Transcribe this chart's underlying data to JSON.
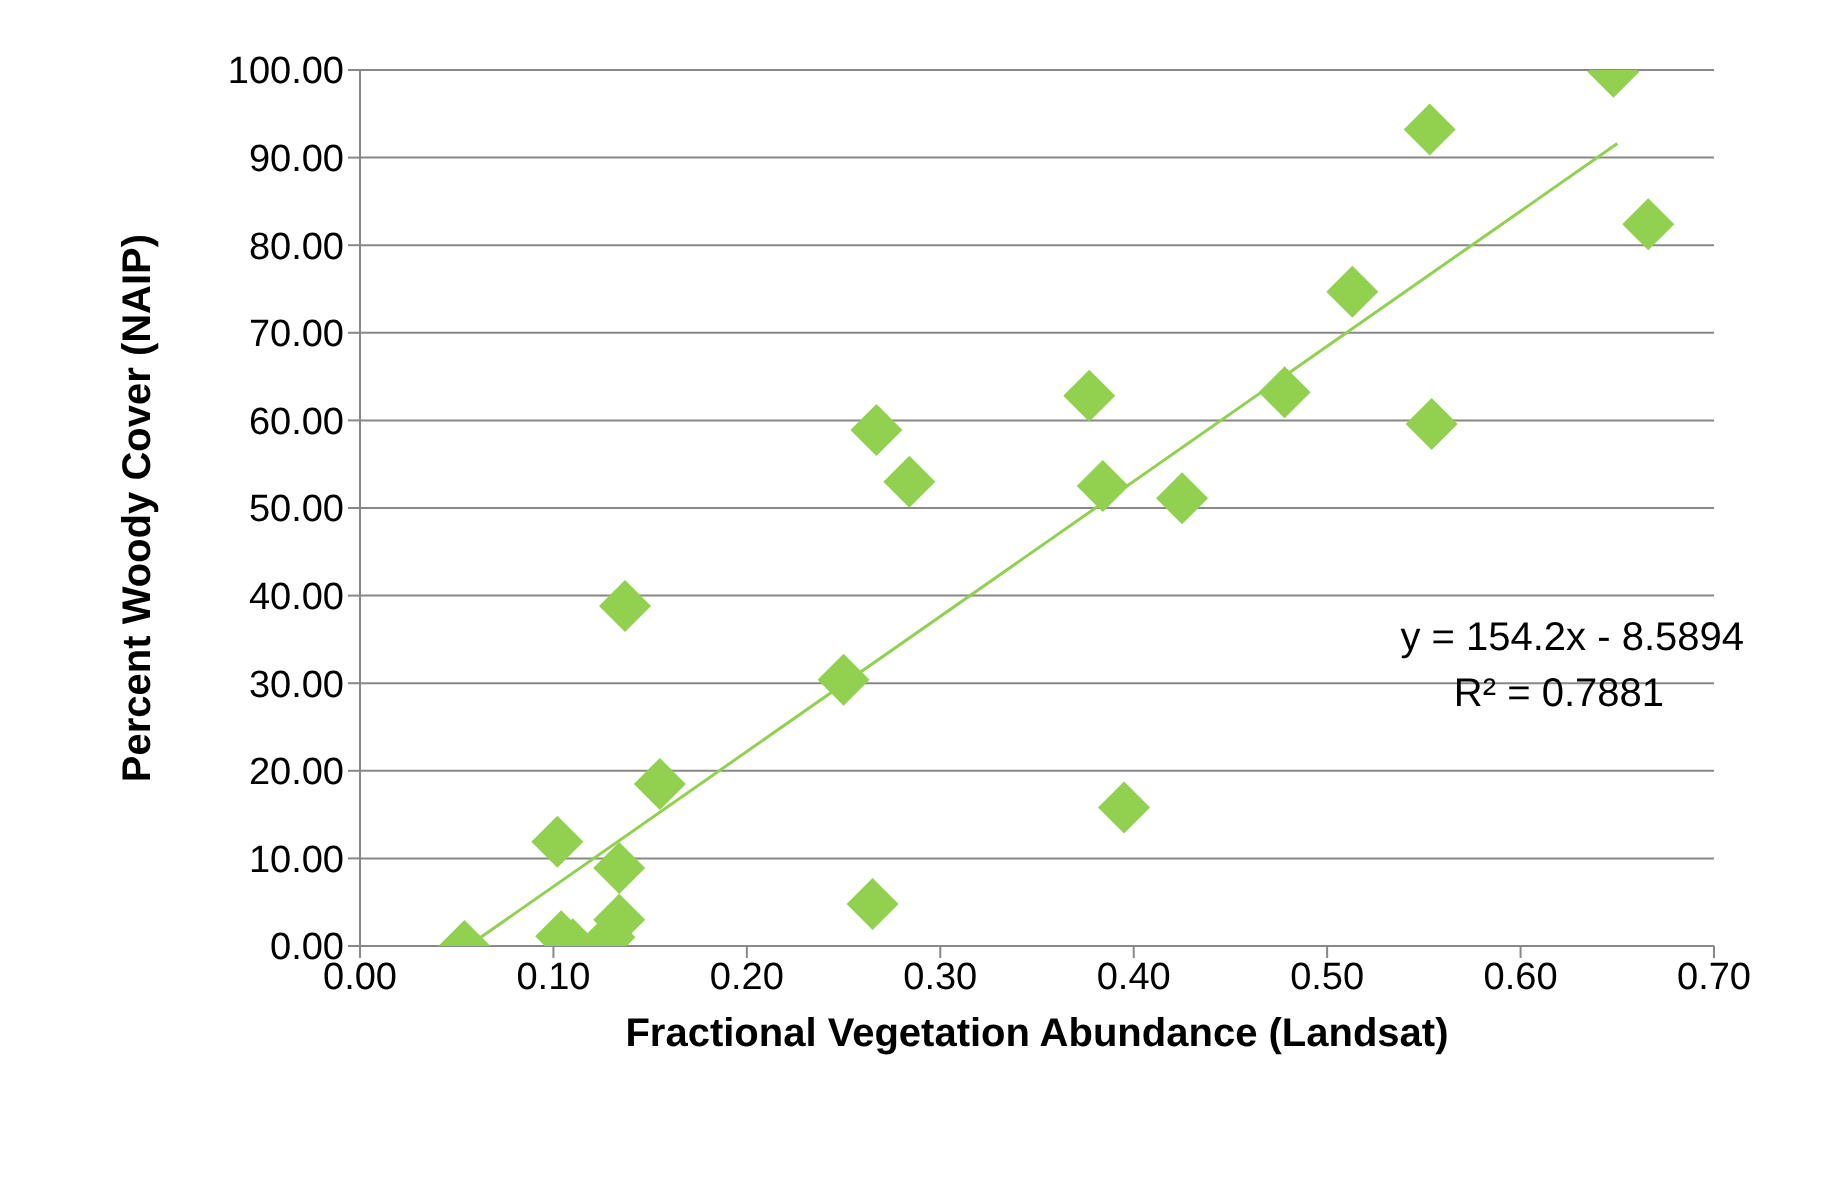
{
  "chart_data": {
    "type": "scatter",
    "xlabel": "Fractional Vegetation Abundance (Landsat)",
    "ylabel": "Percent Woody Cover (NAIP)",
    "xlim": [
      0,
      0.7
    ],
    "xticks": [
      {
        "value": 0,
        "label": "0.00"
      },
      {
        "value": 0.1,
        "label": "0.10"
      },
      {
        "value": 0.2,
        "label": "0.20"
      },
      {
        "value": 0.3,
        "label": "0.30"
      },
      {
        "value": 0.4,
        "label": "0.40"
      },
      {
        "value": 0.5,
        "label": "0.50"
      },
      {
        "value": 0.6,
        "label": "0.60"
      },
      {
        "value": 0.7,
        "label": "0.70"
      }
    ],
    "ylim": [
      0,
      100
    ],
    "yticks": [
      {
        "value": 0,
        "label": "0.00"
      },
      {
        "value": 10,
        "label": "10.00"
      },
      {
        "value": 20,
        "label": "20.00"
      },
      {
        "value": 30,
        "label": "30.00"
      },
      {
        "value": 40,
        "label": "40.00"
      },
      {
        "value": 50,
        "label": "50.00"
      },
      {
        "value": 60,
        "label": "60.00"
      },
      {
        "value": 70,
        "label": "70.00"
      },
      {
        "value": 80,
        "label": "80.00"
      },
      {
        "value": 90,
        "label": "90.00"
      },
      {
        "value": 100,
        "label": "100.00"
      }
    ],
    "grid": "y",
    "legend": false,
    "series": [
      {
        "color": "#92d050",
        "marker": "diamond",
        "x": [
          0.054,
          0.102,
          0.104,
          0.11,
          0.134,
          0.134,
          0.129,
          0.137,
          0.155,
          0.25,
          0.265,
          0.267,
          0.284,
          0.377,
          0.381,
          0.384,
          0.395,
          0.425,
          0.478,
          0.513,
          0.553,
          0.554,
          0.648,
          0.666
        ],
        "values": [
          0,
          11.9,
          1.1,
          0.2,
          8.9,
          3,
          1,
          38.8,
          18.5,
          30.4,
          4.8,
          58.9,
          53,
          62.8,
          null,
          52.5,
          15.8,
          51.1,
          63.2,
          74.7,
          93.2,
          59.6,
          99.8,
          82.4
        ]
      },
      {
        "type": "line",
        "color": "#92d050",
        "x": [
          0.056,
          0.65
        ],
        "values": [
          0,
          91.6
        ]
      }
    ],
    "annotations": [
      "y = 154.2x - 8.5894",
      "R² = 0.7881"
    ]
  }
}
